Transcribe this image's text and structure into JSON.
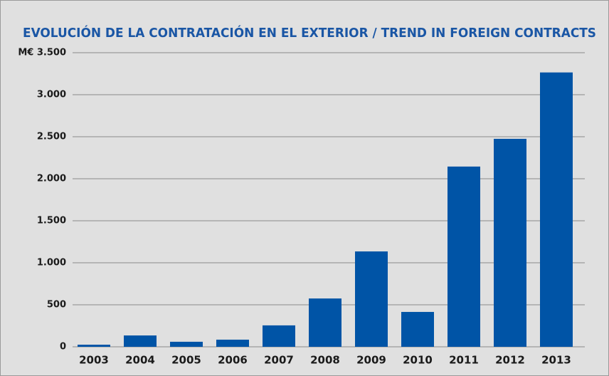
{
  "chart_data": {
    "type": "bar",
    "title": "EVOLUCIÓN DE LA CONTRATACIÓN EN EL EXTERIOR / TREND IN FOREIGN CONTRACTS",
    "categories": [
      "2003",
      "2004",
      "2005",
      "2006",
      "2007",
      "2008",
      "2009",
      "2010",
      "2011",
      "2012",
      "2013"
    ],
    "values": [
      25,
      135,
      60,
      85,
      255,
      575,
      1135,
      415,
      2145,
      2475,
      3265
    ],
    "color": "#0054a6",
    "ylim": [
      0,
      3500
    ],
    "yticks": [
      0,
      500,
      {
        "value": 1000,
        "label": "1.000"
      },
      {
        "value": 1500,
        "label": "1.500"
      },
      {
        "value": 2000,
        "label": "2.000"
      },
      {
        "value": 2500,
        "label": "2.500"
      },
      {
        "value": 3000,
        "label": "3.000"
      },
      {
        "value": 3500,
        "label": "M€ 3.500"
      }
    ],
    "grid": true
  }
}
